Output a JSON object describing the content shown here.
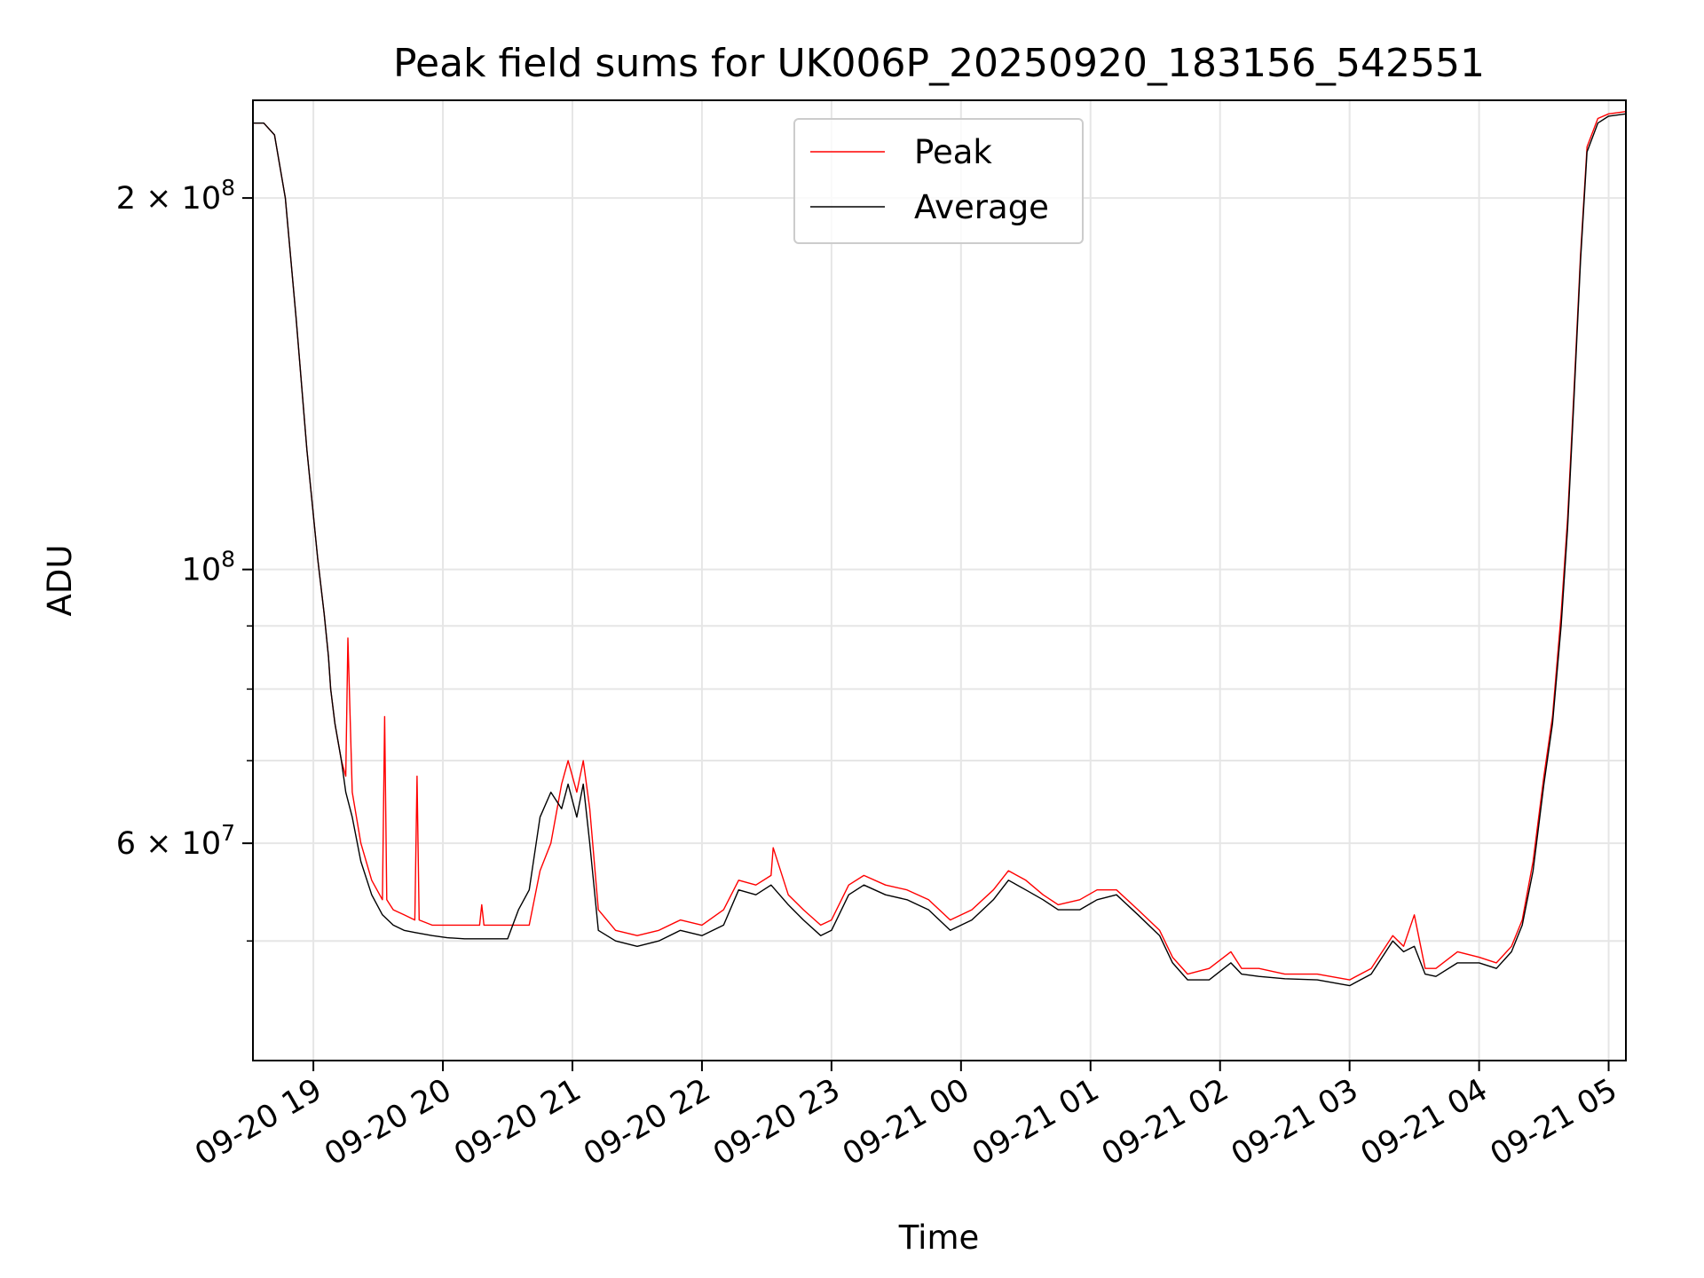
{
  "chart_data": {
    "type": "line",
    "title": "Peak field sums for UK006P_20250920_183156_542551",
    "xlabel": "Time",
    "ylabel": "ADU",
    "yscale": "log",
    "ylim": [
      40000000,
      240000000
    ],
    "xlim": [
      "2025-09-20 18:32",
      "2025-09-21 05:08"
    ],
    "grid": true,
    "legend_position": "top-center",
    "x_ticks": [
      {
        "t": "2025-09-20 19:00",
        "label": "09-20 19"
      },
      {
        "t": "2025-09-20 20:00",
        "label": "09-20 20"
      },
      {
        "t": "2025-09-20 21:00",
        "label": "09-20 21"
      },
      {
        "t": "2025-09-20 22:00",
        "label": "09-20 22"
      },
      {
        "t": "2025-09-20 23:00",
        "label": "09-20 23"
      },
      {
        "t": "2025-09-21 00:00",
        "label": "09-21 00"
      },
      {
        "t": "2025-09-21 01:00",
        "label": "09-21 01"
      },
      {
        "t": "2025-09-21 02:00",
        "label": "09-21 02"
      },
      {
        "t": "2025-09-21 03:00",
        "label": "09-21 03"
      },
      {
        "t": "2025-09-21 04:00",
        "label": "09-21 04"
      },
      {
        "t": "2025-09-21 05:00",
        "label": "09-21 05"
      }
    ],
    "y_major_ticks": [
      {
        "value": 60000000,
        "label": "6 × 10",
        "exp": "7"
      },
      {
        "value": 100000000,
        "label": "10",
        "exp": "8"
      },
      {
        "value": 200000000,
        "label": "2 × 10",
        "exp": "8"
      }
    ],
    "y_minor_ticks": [
      50000000,
      70000000,
      80000000,
      90000000
    ],
    "series": [
      {
        "name": "Peak",
        "color": "#ff0000",
        "t": [
          "2025-09-20 18:32",
          "2025-09-20 18:37",
          "2025-09-20 18:42",
          "2025-09-20 18:47",
          "2025-09-20 18:52",
          "2025-09-20 18:57",
          "2025-09-20 19:02",
          "2025-09-20 19:05",
          "2025-09-20 19:07",
          "2025-09-20 19:08",
          "2025-09-20 19:10",
          "2025-09-20 19:13",
          "2025-09-20 19:15",
          "2025-09-20 19:16",
          "2025-09-20 19:18",
          "2025-09-20 19:22",
          "2025-09-20 19:27",
          "2025-09-20 19:32",
          "2025-09-20 19:33",
          "2025-09-20 19:34",
          "2025-09-20 19:37",
          "2025-09-20 19:42",
          "2025-09-20 19:47",
          "2025-09-20 19:48",
          "2025-09-20 19:49",
          "2025-09-20 19:55",
          "2025-09-20 20:02",
          "2025-09-20 20:10",
          "2025-09-20 20:17",
          "2025-09-20 20:18",
          "2025-09-20 20:19",
          "2025-09-20 20:30",
          "2025-09-20 20:35",
          "2025-09-20 20:40",
          "2025-09-20 20:45",
          "2025-09-20 20:50",
          "2025-09-20 20:55",
          "2025-09-20 20:58",
          "2025-09-20 21:02",
          "2025-09-20 21:05",
          "2025-09-20 21:08",
          "2025-09-20 21:12",
          "2025-09-20 21:20",
          "2025-09-20 21:30",
          "2025-09-20 21:40",
          "2025-09-20 21:50",
          "2025-09-20 22:00",
          "2025-09-20 22:10",
          "2025-09-20 22:17",
          "2025-09-20 22:25",
          "2025-09-20 22:32",
          "2025-09-20 22:33",
          "2025-09-20 22:40",
          "2025-09-20 22:47",
          "2025-09-20 22:55",
          "2025-09-20 23:00",
          "2025-09-20 23:08",
          "2025-09-20 23:15",
          "2025-09-20 23:25",
          "2025-09-20 23:35",
          "2025-09-20 23:45",
          "2025-09-20 23:55",
          "2025-09-21 00:05",
          "2025-09-21 00:15",
          "2025-09-21 00:22",
          "2025-09-21 00:30",
          "2025-09-21 00:38",
          "2025-09-21 00:45",
          "2025-09-21 00:55",
          "2025-09-21 01:03",
          "2025-09-21 01:12",
          "2025-09-21 01:22",
          "2025-09-21 01:32",
          "2025-09-21 01:38",
          "2025-09-21 01:45",
          "2025-09-21 01:55",
          "2025-09-21 02:05",
          "2025-09-21 02:10",
          "2025-09-21 02:18",
          "2025-09-21 02:30",
          "2025-09-21 02:45",
          "2025-09-21 03:00",
          "2025-09-21 03:10",
          "2025-09-21 03:20",
          "2025-09-21 03:25",
          "2025-09-21 03:30",
          "2025-09-21 03:35",
          "2025-09-21 03:40",
          "2025-09-21 03:50",
          "2025-09-21 04:00",
          "2025-09-21 04:08",
          "2025-09-21 04:15",
          "2025-09-21 04:20",
          "2025-09-21 04:25",
          "2025-09-21 04:30",
          "2025-09-21 04:34",
          "2025-09-21 04:38",
          "2025-09-21 04:41",
          "2025-09-21 04:44",
          "2025-09-21 04:47",
          "2025-09-21 04:50",
          "2025-09-21 04:55",
          "2025-09-21 05:00",
          "2025-09-21 05:08"
        ],
        "values": [
          230000000,
          230000000,
          225000000,
          200000000,
          160000000,
          125000000,
          102000000,
          92000000,
          85000000,
          80000000,
          75000000,
          70000000,
          68000000,
          88000000,
          66000000,
          60000000,
          56000000,
          54000000,
          76000000,
          54000000,
          53000000,
          52500000,
          52000000,
          68000000,
          52000000,
          51500000,
          51500000,
          51500000,
          51500000,
          53500000,
          51500000,
          51500000,
          51500000,
          51500000,
          57000000,
          60000000,
          67000000,
          70000000,
          66000000,
          70000000,
          64000000,
          53000000,
          51000000,
          50500000,
          51000000,
          52000000,
          51500000,
          53000000,
          56000000,
          55500000,
          56500000,
          59500000,
          54500000,
          53000000,
          51500000,
          52000000,
          55500000,
          56500000,
          55500000,
          55000000,
          54000000,
          52000000,
          53000000,
          55000000,
          57000000,
          56000000,
          54500000,
          53500000,
          54000000,
          55000000,
          55000000,
          53000000,
          51000000,
          48500000,
          47000000,
          47500000,
          49000000,
          47500000,
          47500000,
          47000000,
          47000000,
          46500000,
          47500000,
          50500000,
          49500000,
          52500000,
          47500000,
          47500000,
          49000000,
          48500000,
          48000000,
          49500000,
          52000000,
          58000000,
          68000000,
          76000000,
          92000000,
          110000000,
          140000000,
          180000000,
          220000000,
          232000000,
          234000000,
          235000000
        ]
      },
      {
        "name": "Average",
        "color": "#000000",
        "t": [
          "2025-09-20 18:32",
          "2025-09-20 18:37",
          "2025-09-20 18:42",
          "2025-09-20 18:47",
          "2025-09-20 18:52",
          "2025-09-20 18:57",
          "2025-09-20 19:02",
          "2025-09-20 19:05",
          "2025-09-20 19:07",
          "2025-09-20 19:08",
          "2025-09-20 19:10",
          "2025-09-20 19:13",
          "2025-09-20 19:15",
          "2025-09-20 19:18",
          "2025-09-20 19:22",
          "2025-09-20 19:27",
          "2025-09-20 19:32",
          "2025-09-20 19:37",
          "2025-09-20 19:42",
          "2025-09-20 19:47",
          "2025-09-20 19:55",
          "2025-09-20 20:02",
          "2025-09-20 20:10",
          "2025-09-20 20:17",
          "2025-09-20 20:25",
          "2025-09-20 20:30",
          "2025-09-20 20:35",
          "2025-09-20 20:40",
          "2025-09-20 20:45",
          "2025-09-20 20:50",
          "2025-09-20 20:55",
          "2025-09-20 20:58",
          "2025-09-20 21:02",
          "2025-09-20 21:05",
          "2025-09-20 21:08",
          "2025-09-20 21:12",
          "2025-09-20 21:20",
          "2025-09-20 21:30",
          "2025-09-20 21:40",
          "2025-09-20 21:50",
          "2025-09-20 22:00",
          "2025-09-20 22:10",
          "2025-09-20 22:17",
          "2025-09-20 22:25",
          "2025-09-20 22:32",
          "2025-09-20 22:40",
          "2025-09-20 22:47",
          "2025-09-20 22:55",
          "2025-09-20 23:00",
          "2025-09-20 23:08",
          "2025-09-20 23:15",
          "2025-09-20 23:25",
          "2025-09-20 23:35",
          "2025-09-20 23:45",
          "2025-09-20 23:55",
          "2025-09-21 00:05",
          "2025-09-21 00:15",
          "2025-09-21 00:22",
          "2025-09-21 00:30",
          "2025-09-21 00:38",
          "2025-09-21 00:45",
          "2025-09-21 00:55",
          "2025-09-21 01:03",
          "2025-09-21 01:12",
          "2025-09-21 01:22",
          "2025-09-21 01:32",
          "2025-09-21 01:38",
          "2025-09-21 01:45",
          "2025-09-21 01:55",
          "2025-09-21 02:05",
          "2025-09-21 02:10",
          "2025-09-21 02:18",
          "2025-09-21 02:30",
          "2025-09-21 02:45",
          "2025-09-21 03:00",
          "2025-09-21 03:10",
          "2025-09-21 03:20",
          "2025-09-21 03:25",
          "2025-09-21 03:30",
          "2025-09-21 03:35",
          "2025-09-21 03:40",
          "2025-09-21 03:50",
          "2025-09-21 04:00",
          "2025-09-21 04:08",
          "2025-09-21 04:15",
          "2025-09-21 04:20",
          "2025-09-21 04:25",
          "2025-09-21 04:30",
          "2025-09-21 04:34",
          "2025-09-21 04:38",
          "2025-09-21 04:41",
          "2025-09-21 04:44",
          "2025-09-21 04:47",
          "2025-09-21 04:50",
          "2025-09-21 04:55",
          "2025-09-21 05:00",
          "2025-09-21 05:08"
        ],
        "values": [
          230000000,
          230000000,
          225000000,
          200000000,
          160000000,
          125000000,
          102000000,
          92000000,
          85000000,
          80000000,
          75000000,
          70000000,
          66000000,
          63000000,
          58000000,
          54500000,
          52500000,
          51500000,
          51000000,
          50800000,
          50500000,
          50300000,
          50200000,
          50200000,
          50200000,
          50200000,
          53000000,
          55000000,
          63000000,
          66000000,
          64000000,
          67000000,
          63000000,
          67000000,
          60000000,
          51000000,
          50000000,
          49500000,
          50000000,
          51000000,
          50500000,
          51500000,
          55000000,
          54500000,
          55500000,
          53500000,
          52000000,
          50500000,
          51000000,
          54500000,
          55500000,
          54500000,
          54000000,
          53000000,
          51000000,
          52000000,
          54000000,
          56000000,
          55000000,
          54000000,
          53000000,
          53000000,
          54000000,
          54500000,
          52500000,
          50500000,
          48000000,
          46500000,
          46500000,
          48000000,
          47000000,
          46800000,
          46600000,
          46500000,
          46000000,
          47000000,
          50000000,
          49000000,
          49500000,
          47000000,
          46800000,
          48000000,
          48000000,
          47500000,
          49000000,
          51500000,
          57000000,
          67000000,
          75000000,
          90000000,
          108000000,
          138000000,
          178000000,
          218000000,
          230000000,
          233000000,
          234000000
        ]
      }
    ]
  }
}
